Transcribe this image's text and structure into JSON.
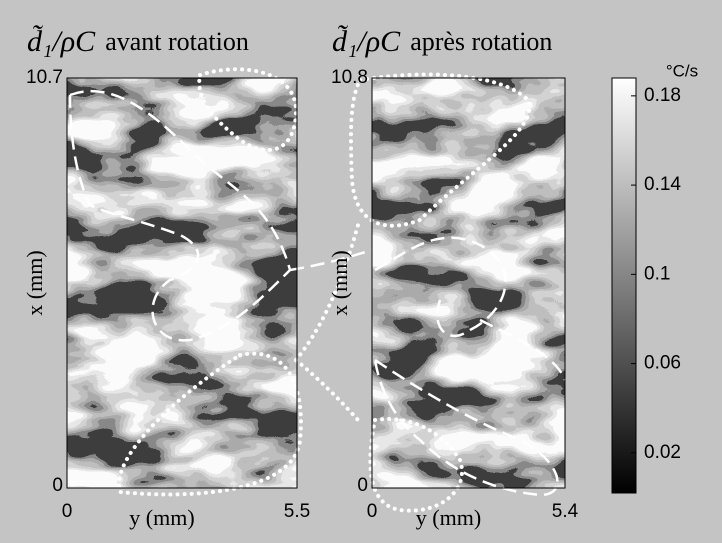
{
  "chart_data": [
    {
      "type": "contour",
      "title_symbol": "d̃₁/ρC",
      "title": "avant rotation",
      "xlabel": "y (mm)",
      "ylabel": "x (mm)",
      "xlim": [
        0,
        5.5
      ],
      "xticks": [
        0,
        5.5
      ],
      "ylim": [
        0,
        10.7
      ],
      "yticks": [
        0,
        10.7
      ]
    },
    {
      "type": "contour",
      "title_symbol": "d̃₁/ρC",
      "title": "après rotation",
      "xlabel": "y (mm)",
      "ylabel": "x (mm)",
      "xlim": [
        0,
        5.4
      ],
      "xticks": [
        0,
        5.4
      ],
      "ylim": [
        0,
        10.8
      ],
      "yticks": [
        0,
        10.8
      ]
    },
    {
      "type": "colorbar",
      "unit": "°C/s",
      "lim": [
        0.002,
        0.188
      ],
      "ticks": [
        0.02,
        0.06,
        0.1,
        0.14,
        0.18
      ],
      "colors": [
        "#000000",
        "#ffffff"
      ]
    }
  ]
}
